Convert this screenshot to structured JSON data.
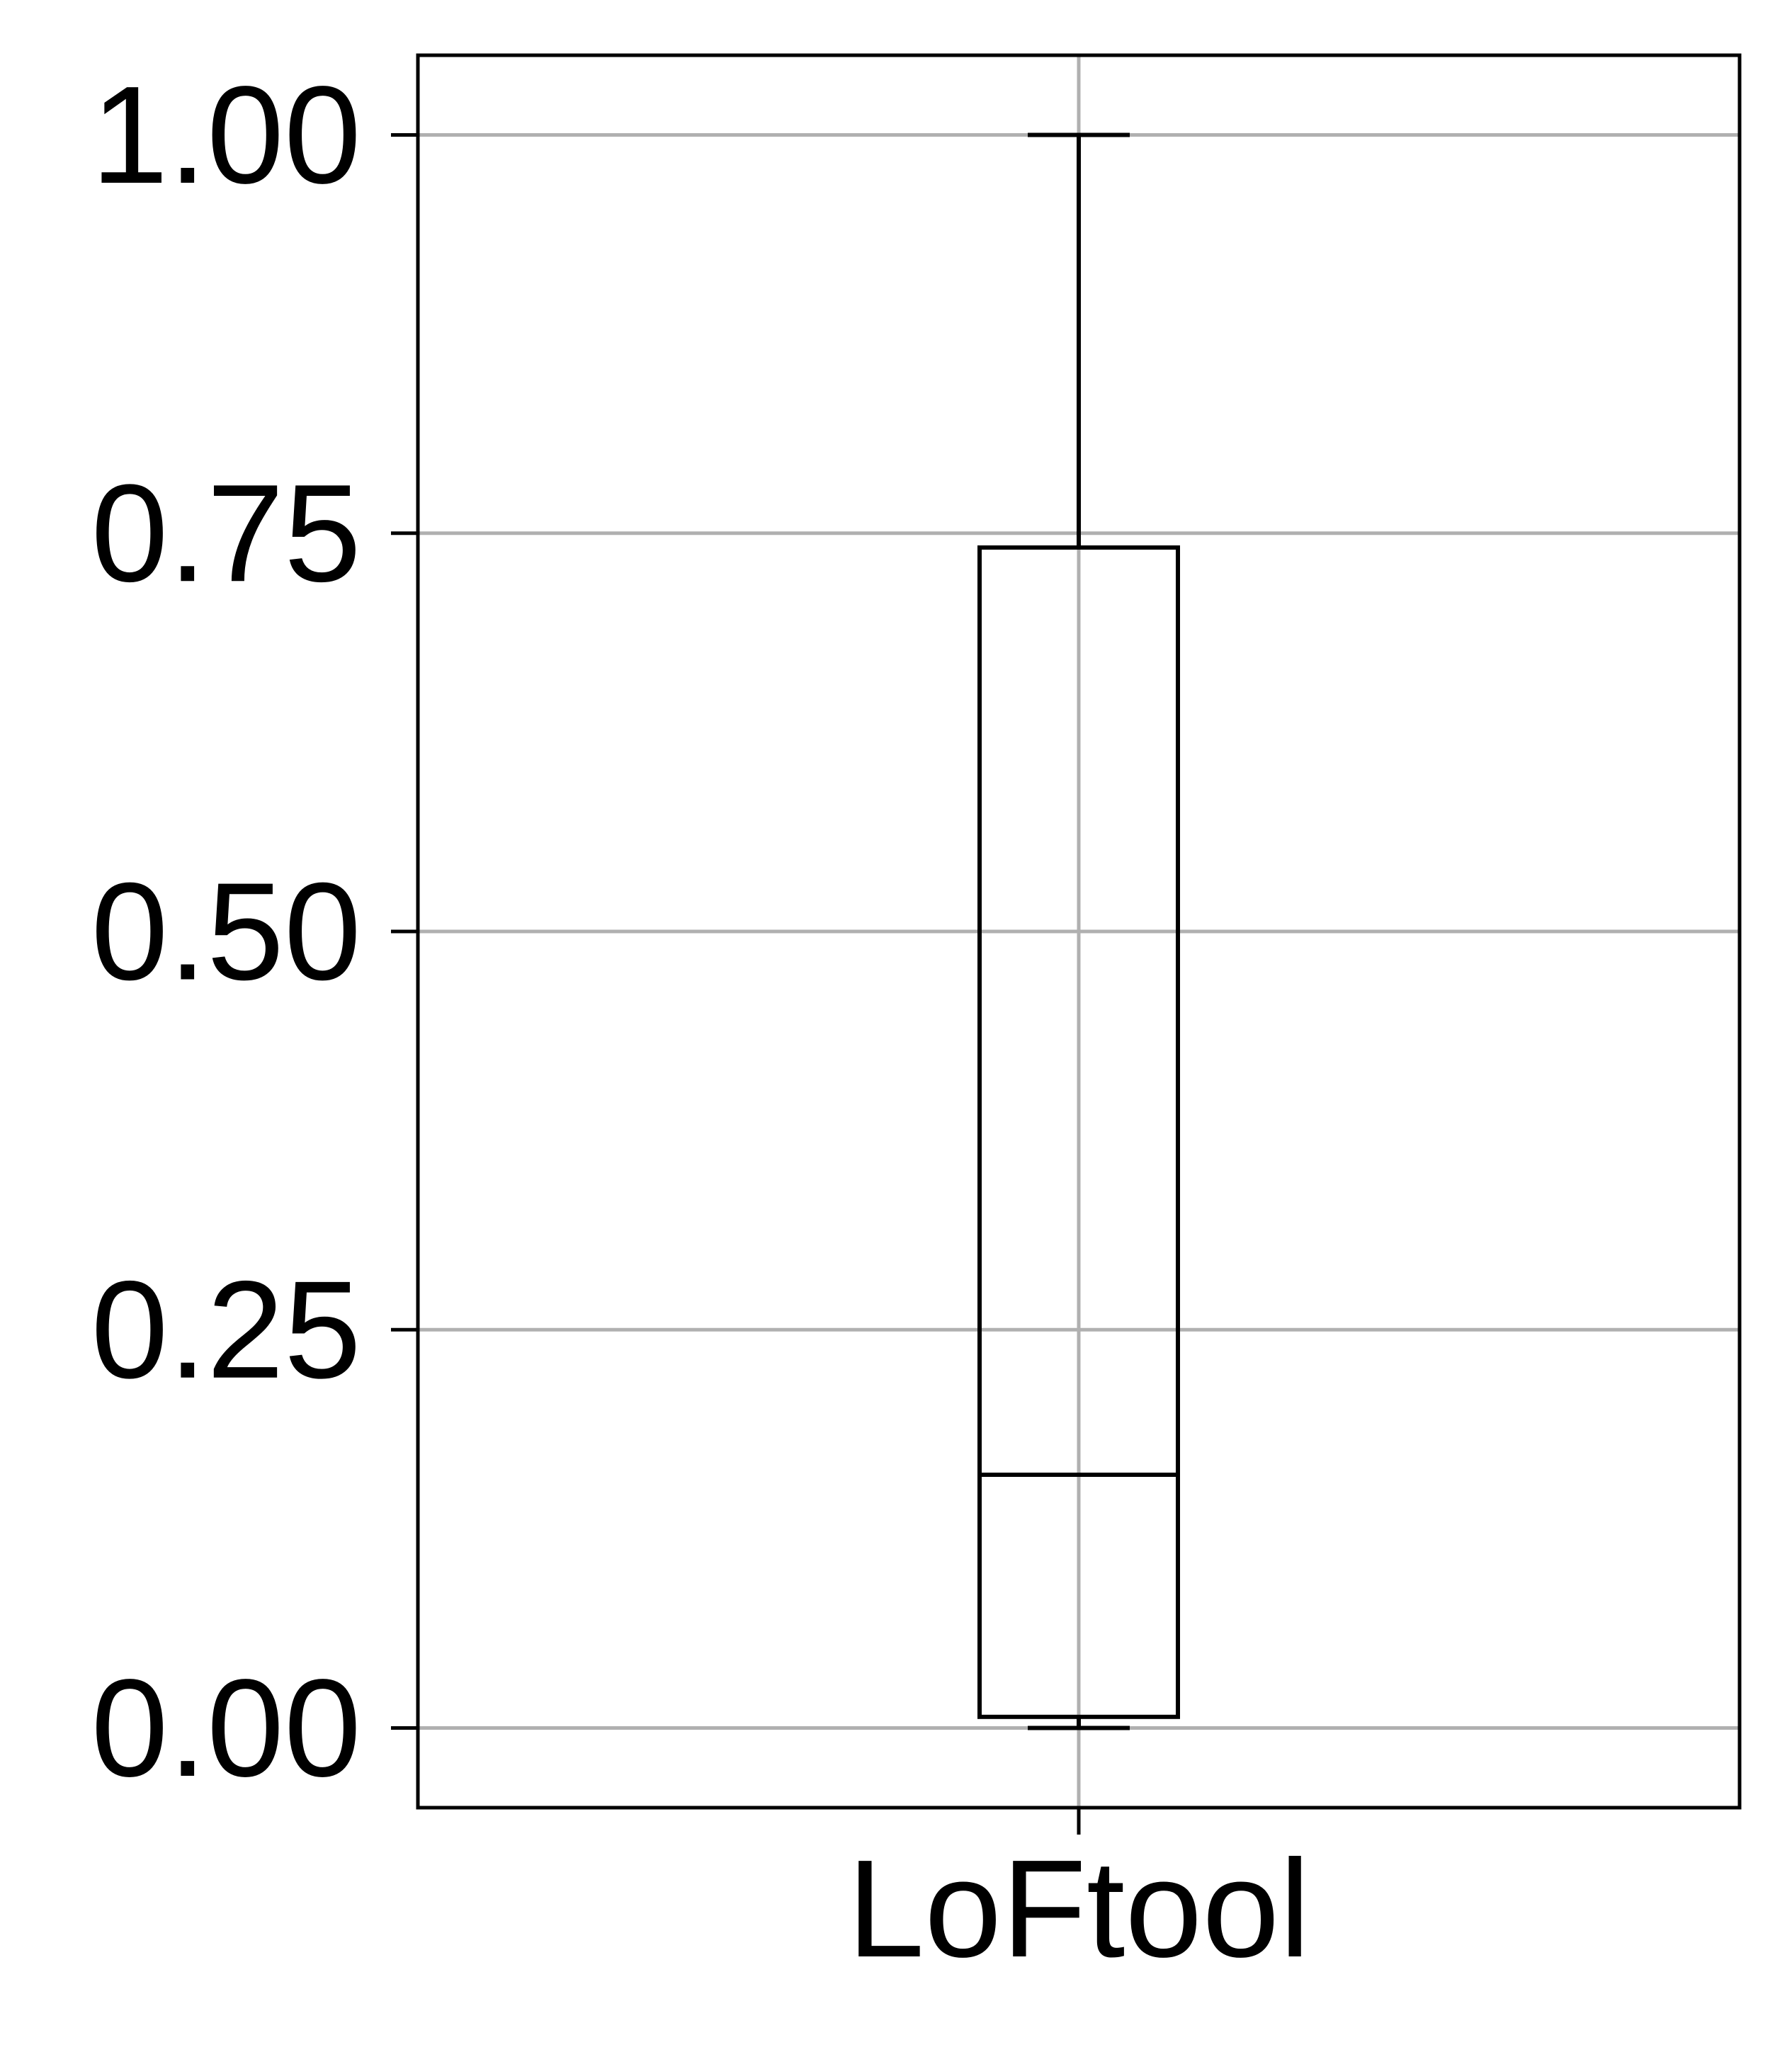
{
  "chart_data": {
    "type": "box",
    "title": "",
    "xlabel": "",
    "ylabel": "",
    "categories": [
      "LoFtool"
    ],
    "boxes": [
      {
        "category": "LoFtool",
        "whisker_low": 0.0,
        "q1": 0.007,
        "median": 0.159,
        "q3": 0.741,
        "whisker_high": 1.0
      }
    ],
    "ylim": [
      -0.05,
      1.05
    ],
    "yticks": [
      0.0,
      0.25,
      0.5,
      0.75,
      1.0
    ],
    "ytick_labels": [
      "0.00",
      "0.25",
      "0.50",
      "0.75",
      "1.00"
    ],
    "grid": true,
    "legend": "none",
    "colors": {
      "box": "#000000",
      "grid": "#b0b0b0",
      "frame": "#000000",
      "background": "#ffffff"
    }
  }
}
